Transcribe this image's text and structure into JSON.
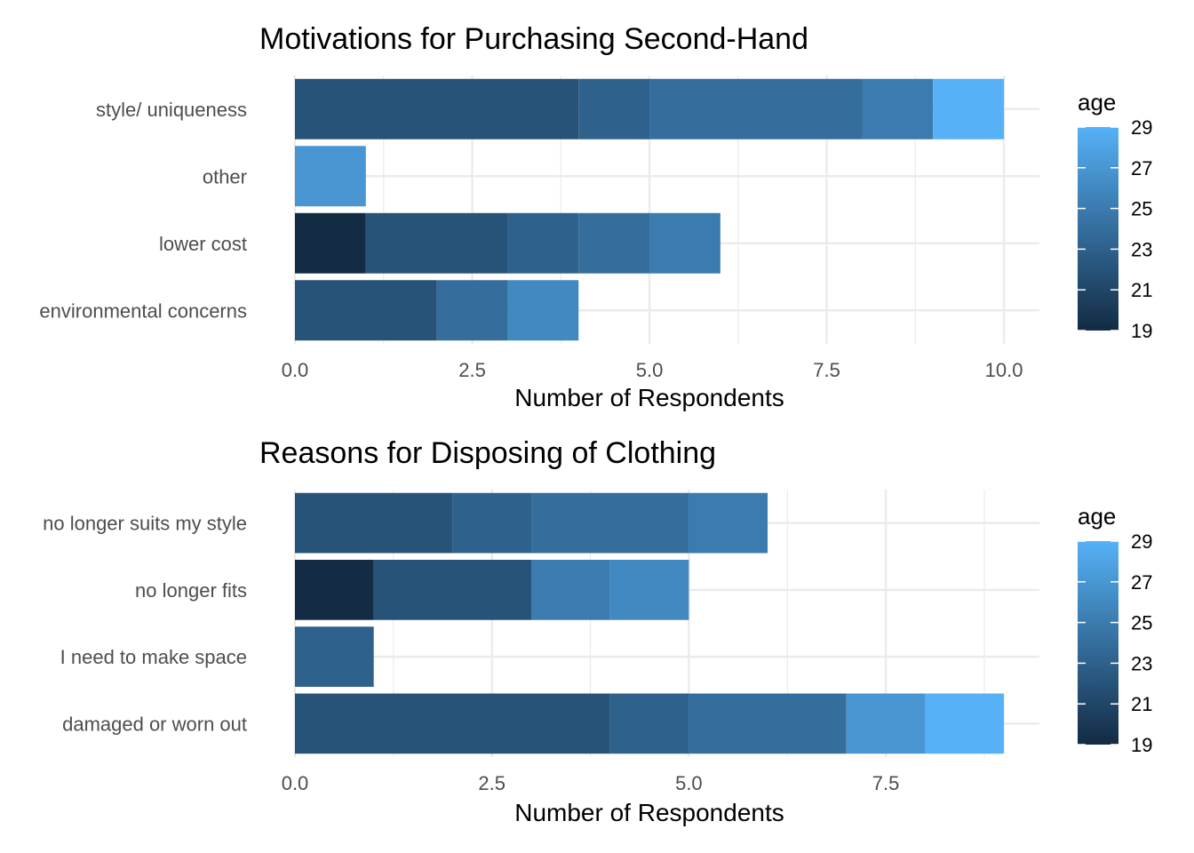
{
  "chart_data": [
    {
      "type": "bar",
      "orientation": "horizontal",
      "stacked": true,
      "title": "Motivations for Purchasing Second-Hand",
      "xlabel": "Number of Respondents",
      "ylabel": "",
      "xlim": [
        0,
        10.5
      ],
      "x_ticks": [
        0,
        2.5,
        5,
        7.5,
        10
      ],
      "x_tick_labels": [
        "0.0",
        "2.5",
        "5.0",
        "7.5",
        "10.0"
      ],
      "categories": [
        "environmental concerns",
        "lower cost",
        "other",
        "style/ uniqueness"
      ],
      "segments": [
        [
          {
            "age": 22,
            "count": 2
          },
          {
            "age": 24,
            "count": 1
          },
          {
            "age": 26,
            "count": 1
          }
        ],
        [
          {
            "age": 19,
            "count": 1
          },
          {
            "age": 22,
            "count": 2
          },
          {
            "age": 23,
            "count": 1
          },
          {
            "age": 24,
            "count": 1
          },
          {
            "age": 25,
            "count": 1
          }
        ],
        [
          {
            "age": 27,
            "count": 1
          }
        ],
        [
          {
            "age": 22,
            "count": 4
          },
          {
            "age": 23,
            "count": 1
          },
          {
            "age": 24,
            "count": 3
          },
          {
            "age": 25,
            "count": 1
          },
          {
            "age": 29,
            "count": 1
          }
        ]
      ],
      "legend": {
        "title": "age",
        "min": 19,
        "max": 29,
        "ticks": [
          19,
          21,
          23,
          25,
          27,
          29
        ],
        "placement": "right"
      },
      "grid": true
    },
    {
      "type": "bar",
      "orientation": "horizontal",
      "stacked": true,
      "title": "Reasons for Disposing of Clothing",
      "xlabel": "Number of Respondents",
      "ylabel": "",
      "xlim": [
        0,
        9.45
      ],
      "x_ticks": [
        0,
        2.5,
        5,
        7.5
      ],
      "x_tick_labels": [
        "0.0",
        "2.5",
        "5.0",
        "7.5"
      ],
      "categories": [
        "damaged or worn out",
        "I need to make space",
        "no longer fits",
        "no longer suits my style"
      ],
      "segments": [
        [
          {
            "age": 22,
            "count": 4
          },
          {
            "age": 23,
            "count": 1
          },
          {
            "age": 24,
            "count": 2
          },
          {
            "age": 27,
            "count": 1
          },
          {
            "age": 29,
            "count": 1
          }
        ],
        [
          {
            "age": 23,
            "count": 1
          }
        ],
        [
          {
            "age": 19,
            "count": 1
          },
          {
            "age": 22,
            "count": 2
          },
          {
            "age": 25,
            "count": 1
          },
          {
            "age": 26,
            "count": 1
          }
        ],
        [
          {
            "age": 22,
            "count": 2
          },
          {
            "age": 23,
            "count": 1
          },
          {
            "age": 24,
            "count": 2
          },
          {
            "age": 25,
            "count": 1
          }
        ]
      ],
      "legend": {
        "title": "age",
        "min": 19,
        "max": 29,
        "ticks": [
          19,
          21,
          23,
          25,
          27,
          29
        ],
        "placement": "right"
      },
      "grid": true
    }
  ],
  "colors": {
    "low": "#132B43",
    "high": "#56B1F7",
    "grid": "#ebebeb",
    "text_dark": "#000000",
    "text_axis": "#4d4d4d"
  }
}
